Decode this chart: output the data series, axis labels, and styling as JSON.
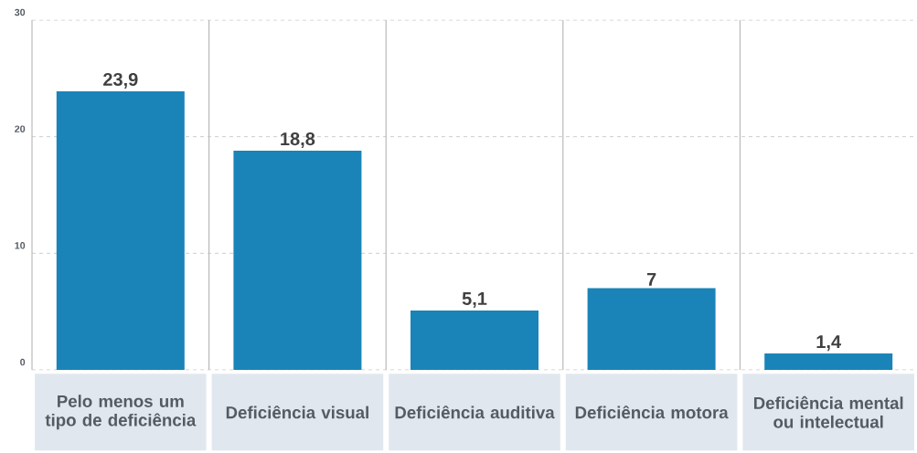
{
  "chart_data": {
    "type": "bar",
    "categories": [
      "Pelo menos um tipo de deficiência",
      "Deficiência visual",
      "Deficiência auditiva",
      "Deficiência motora",
      "Deficiência mental ou intelectual"
    ],
    "values": [
      23.9,
      18.8,
      5.1,
      7,
      1.4
    ],
    "value_labels": [
      "23,9",
      "18,8",
      "5,1",
      "7",
      "1,4"
    ],
    "color": "#1a84b8",
    "ylim": [
      0,
      30
    ],
    "yticks": [
      0,
      10,
      20,
      30
    ],
    "grid": "y"
  }
}
